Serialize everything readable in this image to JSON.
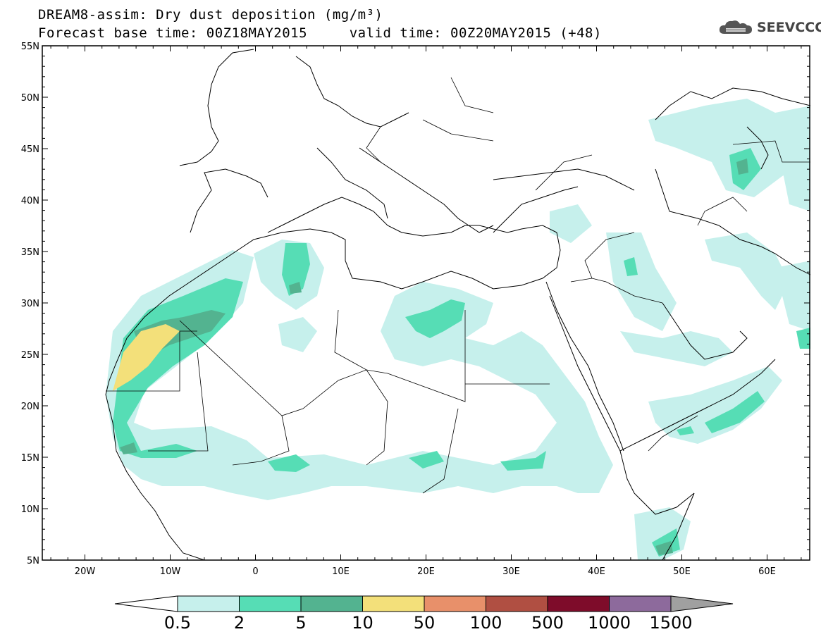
{
  "title": {
    "line1": "DREAM8-assim: Dry dust deposition (mg/m³)",
    "line2": "Forecast base time: 00Z18MAY2015     valid time: 00Z20MAY2015 (+48)"
  },
  "logo": {
    "text": "SEEVCCC",
    "icon": "cloud-icon"
  },
  "map": {
    "lon_range": [
      -25,
      65
    ],
    "lat_range": [
      5,
      55
    ],
    "x_ticks": [
      "20W",
      "10W",
      "0",
      "10E",
      "20E",
      "30E",
      "40E",
      "50E",
      "60E"
    ],
    "y_ticks": [
      "55N",
      "50N",
      "45N",
      "40N",
      "35N",
      "30N",
      "25N",
      "20N",
      "15N",
      "10N",
      "5N"
    ]
  },
  "legend": {
    "bins": [
      {
        "color": "#c6f0ec"
      },
      {
        "color": "#56ddb5"
      },
      {
        "color": "#53b390"
      },
      {
        "color": "#f3e07a"
      },
      {
        "color": "#e8906a"
      },
      {
        "color": "#b04f42"
      },
      {
        "color": "#7e0c2a"
      },
      {
        "color": "#8d6a9c"
      }
    ],
    "labels": [
      "0.5",
      "2",
      "5",
      "10",
      "50",
      "100",
      "500",
      "1000",
      "1500"
    ],
    "under_color": "#ffffff",
    "over_color": "#a0a0a0"
  }
}
